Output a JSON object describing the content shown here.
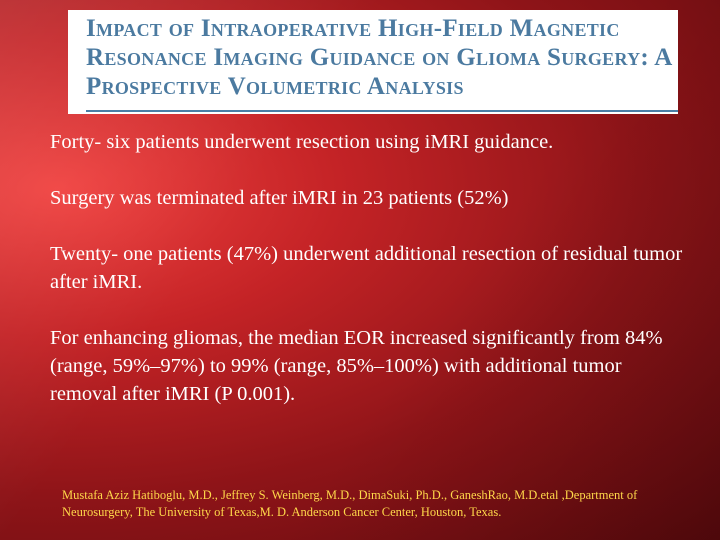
{
  "slide": {
    "title": "Impact of Intraoperative High-Field Magnetic Resonance Imaging Guidance on Glioma Surgery: A Prospective Volumetric Analysis",
    "paragraphs": [
      "Forty- six patients underwent resection using iMRI guidance.",
      "Surgery was terminated after iMRI in 23 patients (52%)",
      "Twenty- one patients (47%) underwent additional resection of residual tumor after iMRI.",
      "For enhancing gliomas, the median EOR increased significantly from 84% (range, 59%–97%) to 99% (range, 85%–100%) with additional tumor removal after iMRI (P 0.001)."
    ],
    "citation": "Mustafa Aziz Hatiboglu, M.D., Jeffrey S. Weinberg, M.D., DimaSuki, Ph.D., GaneshRao, M.D.etal ,Department of Neurosurgery, The University of Texas,M. D. Anderson Cancer Center, Houston, Texas."
  },
  "colors": {
    "background_red": "#c42326",
    "title_text": "#4b7aa0",
    "body_text": "#ffffff",
    "citation_text": "#ffd84a"
  }
}
